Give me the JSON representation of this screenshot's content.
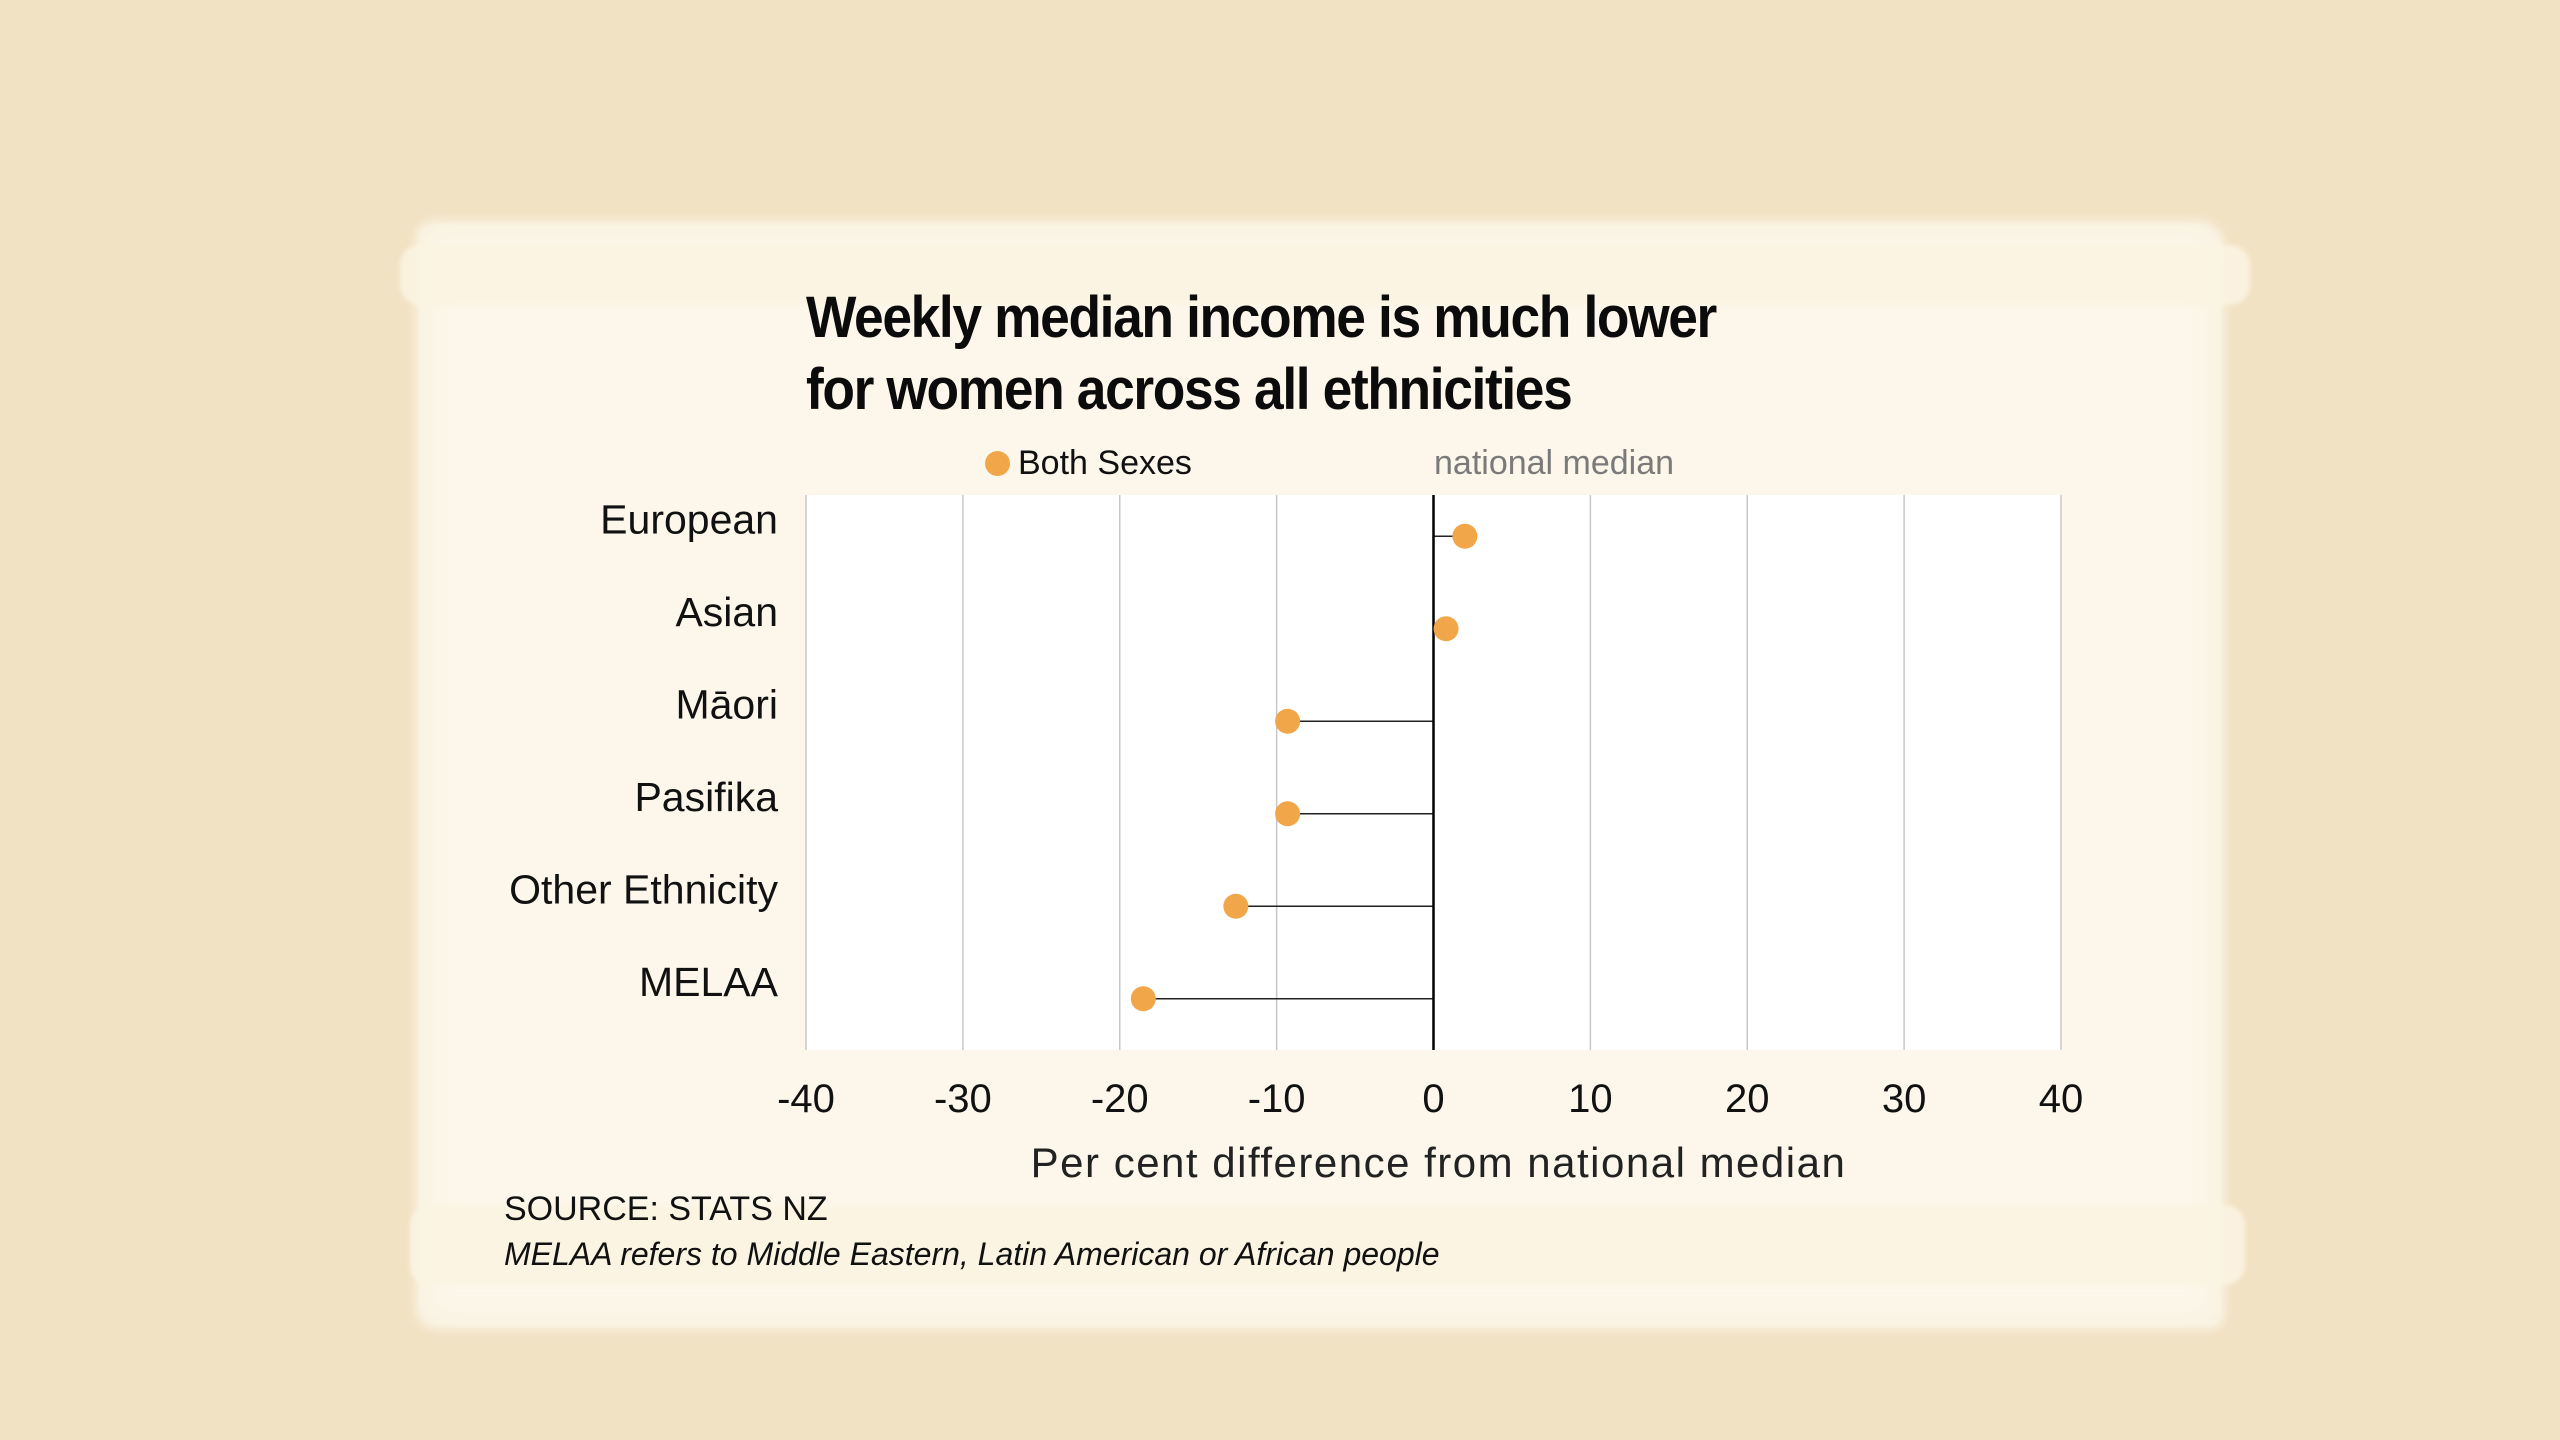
{
  "chart_data": {
    "type": "scatter",
    "subtype": "lollipop-horizontal",
    "title": "Weekly median income is much lower for women across all ethnicities",
    "title_lines": [
      "Weekly median income is much lower",
      "for women across all ethnicities"
    ],
    "legend": [
      {
        "label": "Both Sexes",
        "marker": "dot",
        "color": "#f2a64a"
      },
      {
        "label": "national median",
        "marker": "text",
        "color": "#7a7a7a"
      }
    ],
    "legend_position": "top",
    "categories": [
      "European",
      "Asian",
      "Māori",
      "Pasifika",
      "Other Ethnicity",
      "MELAA"
    ],
    "series": [
      {
        "name": "Both Sexes",
        "color": "#f2a64a",
        "values": [
          2.0,
          0.8,
          -9.3,
          -9.3,
          -12.6,
          -18.5
        ]
      }
    ],
    "baseline": 0,
    "xlim": [
      -40,
      40
    ],
    "xticks": [
      -40,
      -30,
      -20,
      -10,
      0,
      10,
      20,
      30,
      40
    ],
    "xtick_labels": [
      "-40",
      "-30",
      "-20",
      "-10",
      "0",
      "10",
      "20",
      "30",
      "40"
    ],
    "xlabel": "Per cent difference from national median",
    "ylabel": "",
    "grid": "vertical",
    "source": "SOURCE: STATS NZ",
    "note": "MELAA refers to Middle Eastern, Latin American or African people"
  },
  "colors": {
    "background": "#f2e2c4",
    "paper": "#fcf7ea",
    "plot_background": "#ffffff",
    "dot": "#f2a64a",
    "baseline": "#000000",
    "grid": "#c8c8c8"
  }
}
